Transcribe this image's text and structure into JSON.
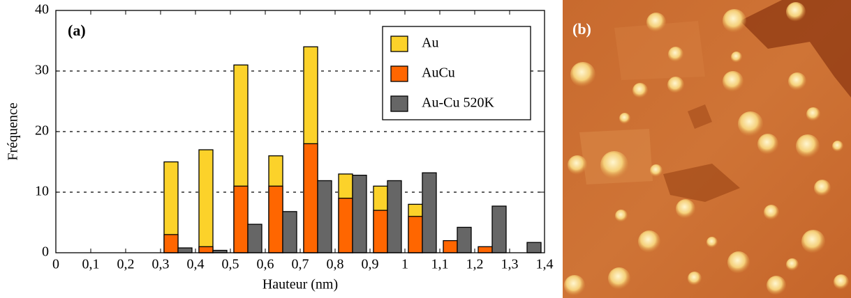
{
  "chart_data": {
    "type": "bar",
    "annotation": "(a)",
    "image_label": "(b)",
    "xlabel": "Hauteur (nm)",
    "ylabel": "Fréquence",
    "x": [
      0.3,
      0.4,
      0.5,
      0.6,
      0.7,
      0.8,
      0.9,
      1,
      1.1,
      1.2,
      1.3
    ],
    "series": [
      {
        "name": "Au",
        "color": "#fcd22a",
        "values": [
          15,
          17,
          31,
          16,
          34,
          13,
          11,
          8,
          0,
          0,
          0
        ]
      },
      {
        "name": "AuCu",
        "color": "#ff6600",
        "values": [
          3,
          1,
          11,
          11,
          18,
          9,
          7,
          6,
          2,
          1,
          0
        ]
      },
      {
        "name": "Au-Cu 520K",
        "color": "#666666",
        "values": [
          0.8,
          0.4,
          4.7,
          6.8,
          11.9,
          12.8,
          11.9,
          13.2,
          4.2,
          7.7,
          1.7
        ]
      }
    ],
    "xlim": [
      0,
      1.4
    ],
    "xticks": [
      0,
      {
        "value": 0.1,
        "label": "0,1"
      },
      {
        "value": 0.2,
        "label": "0,2"
      },
      {
        "value": 0.3,
        "label": "0,3"
      },
      {
        "value": 0.4,
        "label": "0,4"
      },
      {
        "value": 0.5,
        "label": "0,5"
      },
      {
        "value": 0.6,
        "label": "0,6"
      },
      {
        "value": 0.7,
        "label": "0,7"
      },
      {
        "value": 0.8,
        "label": "0,8"
      },
      {
        "value": 0.9,
        "label": "0,9"
      },
      1,
      {
        "value": 1.1,
        "label": "1,1"
      },
      {
        "value": 1.2,
        "label": "1,2"
      },
      {
        "value": 1.3,
        "label": "1,3"
      },
      {
        "value": 1.4,
        "label": "1,4"
      }
    ],
    "ylim": [
      0,
      40
    ],
    "yticks": [
      0,
      10,
      20,
      30,
      40
    ],
    "grid": true,
    "legend": "upper right"
  }
}
